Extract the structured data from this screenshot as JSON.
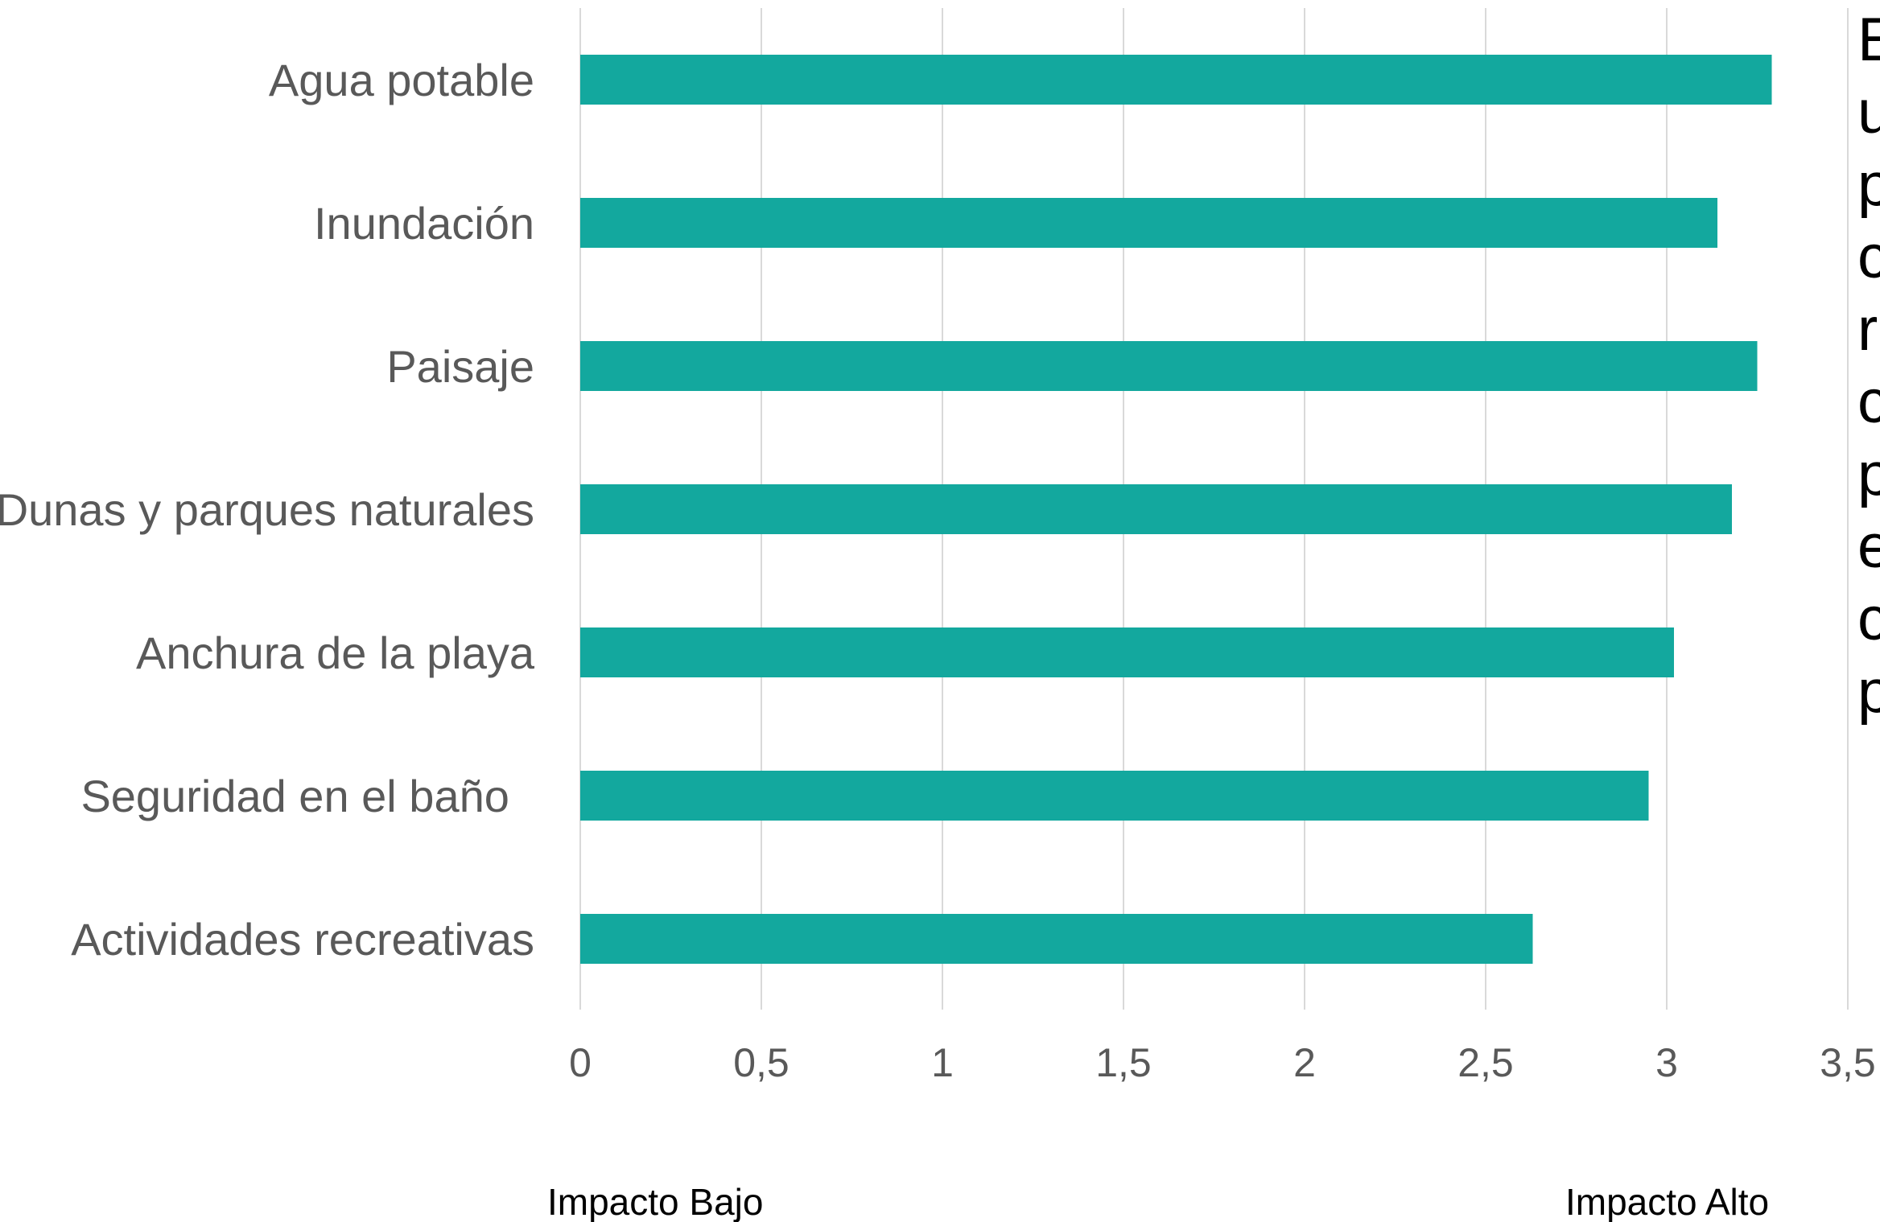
{
  "chart_data": {
    "type": "bar",
    "orientation": "horizontal",
    "categories": [
      "Agua potable",
      "Inundación",
      "Paisaje",
      "Dunas y parques naturales",
      "Anchura de la playa",
      "Seguridad en el baño ",
      "Actividades recreativas"
    ],
    "values": [
      3.29,
      3.14,
      3.25,
      3.18,
      3.02,
      2.95,
      2.63
    ],
    "xlim": [
      0,
      3.5
    ],
    "xticks": [
      "0",
      "0,5",
      "1",
      "1,5",
      "2",
      "2,5",
      "3",
      "3,5"
    ],
    "grid": true,
    "low_label": "Impacto Bajo",
    "high_label": "Impacto Alto",
    "bar_color": "#13A89E",
    "grid_color": "#D9D9D9",
    "label_color": "#595959"
  },
  "side_text": [
    "E",
    "u",
    "p",
    "c",
    "r",
    "c",
    "p",
    "e",
    "c",
    "p"
  ]
}
